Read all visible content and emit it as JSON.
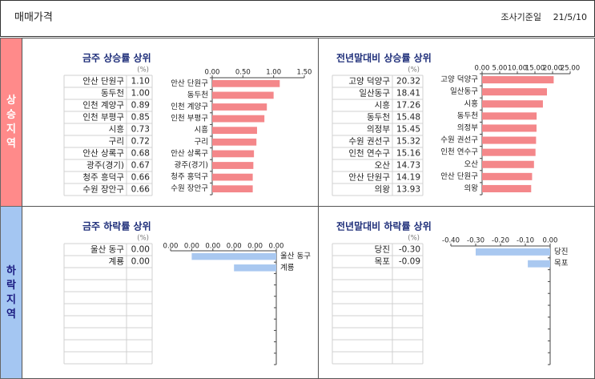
{
  "header": {
    "title": "매매가격",
    "date_label": "조사기준일",
    "date": "21/5/10"
  },
  "sections": [
    "상승지역",
    "하락지역"
  ],
  "chart_data": [
    {
      "type": "bar",
      "title": "금주 상승률 상위",
      "unit": "(%)",
      "categories": [
        "안산 단원구",
        "동두천",
        "인천 계양구",
        "인천 부평구",
        "시흥",
        "구리",
        "안산 상록구",
        "광주(경기)",
        "청주 흥덕구",
        "수원 장안구"
      ],
      "values": [
        1.1,
        1.0,
        0.89,
        0.85,
        0.73,
        0.72,
        0.68,
        0.67,
        0.66,
        0.66
      ],
      "value_labels": [
        "1.10",
        "1.00",
        "0.89",
        "0.85",
        "0.73",
        "0.72",
        "0.68",
        "0.67",
        "0.66",
        "0.66"
      ],
      "xlim": [
        0,
        1.5
      ],
      "xticks": [
        {
          "value": 0,
          "label": "0.00"
        },
        {
          "value": 0.5,
          "label": "0.50"
        },
        {
          "value": 1,
          "label": "1.00"
        },
        {
          "value": 1.5,
          "label": "1.50"
        }
      ],
      "color": "#f4878a"
    },
    {
      "type": "bar",
      "title": "전년말대비 상승률 상위",
      "unit": "(%)",
      "categories": [
        "고양 덕양구",
        "일산동구",
        "시흥",
        "동두천",
        "의정부",
        "수원 권선구",
        "인천 연수구",
        "오산",
        "안산 단원구",
        "의왕"
      ],
      "values": [
        20.32,
        18.41,
        17.26,
        15.48,
        15.45,
        15.32,
        15.16,
        14.73,
        14.19,
        13.93
      ],
      "value_labels": [
        "20.32",
        "18.41",
        "17.26",
        "15.48",
        "15.45",
        "15.32",
        "15.16",
        "14.73",
        "14.19",
        "13.93"
      ],
      "xlim": [
        0,
        25
      ],
      "xticks": [
        {
          "value": 0,
          "label": "0.00"
        },
        {
          "value": 5,
          "label": "5.00"
        },
        {
          "value": 10,
          "label": "10.00"
        },
        {
          "value": 15,
          "label": "15.00"
        },
        {
          "value": 20,
          "label": "20.00"
        },
        {
          "value": 25,
          "label": "25.00"
        }
      ],
      "color": "#f4878a"
    },
    {
      "type": "bar",
      "title": "금주 하락률 상위",
      "unit": "(%)",
      "categories": [
        "울산 동구",
        "계룡"
      ],
      "values": [
        -0.004,
        -0.002
      ],
      "value_labels": [
        "0.00",
        "0.00"
      ],
      "xlim": [
        -0.005,
        0
      ],
      "xticks": [
        {
          "value": -0.005,
          "label": "0.00"
        },
        {
          "value": -0.004,
          "label": "0.00"
        },
        {
          "value": -0.003,
          "label": "0.00"
        },
        {
          "value": -0.002,
          "label": "0.00"
        },
        {
          "value": -0.001,
          "label": "0.00"
        },
        {
          "value": 0,
          "label": "0.00"
        }
      ],
      "color": "#a9c8f0"
    },
    {
      "type": "bar",
      "title": "전년말대비 하락률 상위",
      "unit": "(%)",
      "categories": [
        "당진",
        "목포"
      ],
      "values": [
        -0.3,
        -0.09
      ],
      "value_labels": [
        "-0.30",
        "-0.09"
      ],
      "xlim": [
        -0.4,
        0
      ],
      "xticks": [
        {
          "value": -0.4,
          "label": "-0.40"
        },
        {
          "value": -0.3,
          "label": "-0.30"
        },
        {
          "value": -0.2,
          "label": "-0.20"
        },
        {
          "value": -0.1,
          "label": "-0.10"
        },
        {
          "value": 0,
          "label": "0.00"
        }
      ],
      "color": "#a9c8f0"
    }
  ]
}
